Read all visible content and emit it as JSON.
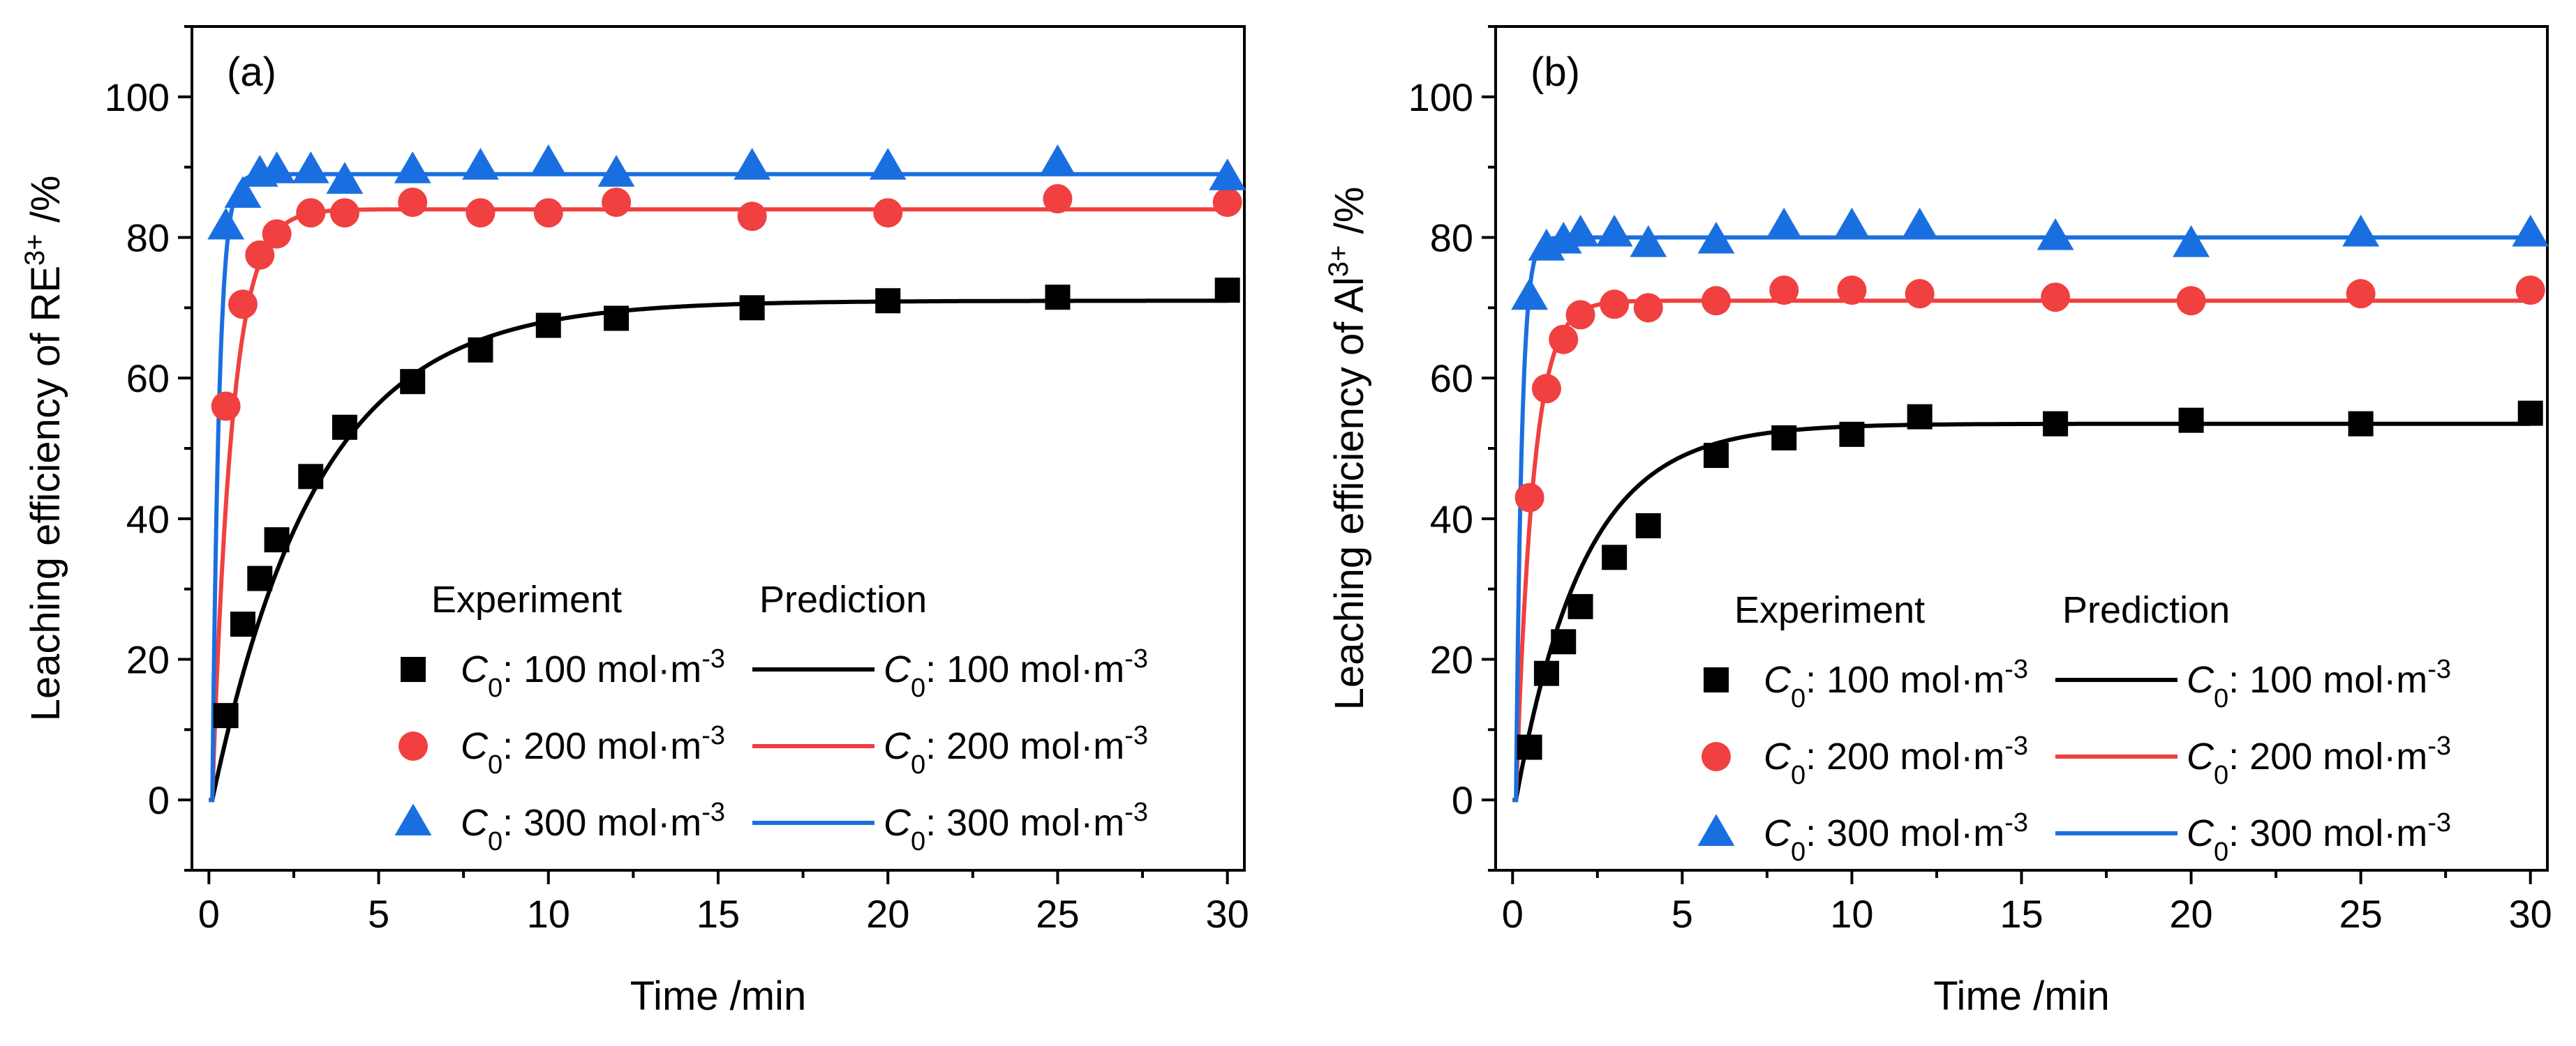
{
  "chart_data": [
    {
      "type": "line",
      "panel_label": "(a)",
      "xlabel": "Time /min",
      "ylabel": {
        "prefix": "Leaching efficiency of RE",
        "superscript": "3+",
        "suffix": " /%"
      },
      "xlim": [
        -0.5,
        30.5
      ],
      "ylim": [
        -10,
        110
      ],
      "xticks": [
        0,
        5,
        10,
        15,
        20,
        25,
        30
      ],
      "yticks": [
        0,
        20,
        40,
        60,
        80,
        100
      ],
      "legend": {
        "position": "bottom-right",
        "experiment_header": "Experiment",
        "prediction_header": "Prediction",
        "entries": [
          {
            "c": "C",
            "sub": "0",
            "text": ": 100 mol·m",
            "sup": "-3"
          },
          {
            "c": "C",
            "sub": "0",
            "text": ": 200 mol·m",
            "sup": "-3"
          },
          {
            "c": "C",
            "sub": "0",
            "text": ": 300 mol·m",
            "sup": "-3"
          }
        ]
      },
      "series": [
        {
          "name": "C0: 100 mol·m-3",
          "color": "#000000",
          "marker": "square",
          "experiment": {
            "x": [
              0.5,
              1,
              1.5,
              2,
              3,
              4,
              6,
              8,
              10,
              12,
              16,
              20,
              25,
              30
            ],
            "y": [
              12,
              25,
              31.5,
              37,
              46,
              53,
              59.5,
              64,
              67.5,
              68.5,
              70,
              71,
              71.5,
              72.5
            ]
          },
          "prediction": {
            "plateau": 71,
            "tau": 3.1,
            "t0": 0.1
          }
        },
        {
          "name": "C0: 200 mol·m-3",
          "color": "#f04040",
          "marker": "circle",
          "experiment": {
            "x": [
              0.5,
              1,
              1.5,
              2,
              3,
              4,
              6,
              8,
              10,
              12,
              16,
              20,
              25,
              30
            ],
            "y": [
              56,
              70.5,
              77.5,
              80.5,
              83.5,
              83.5,
              85,
              83.5,
              83.5,
              85,
              83,
              83.5,
              85.5,
              85
            ]
          },
          "prediction": {
            "plateau": 84,
            "tau": 0.58,
            "t0": 0.1
          }
        },
        {
          "name": "C0: 300 mol·m-3",
          "color": "#1a6fe0",
          "marker": "triangle",
          "experiment": {
            "x": [
              0.5,
              1,
              1.5,
              2,
              3,
              4,
              6,
              8,
              10,
              12,
              16,
              20,
              25,
              30
            ],
            "y": [
              81.5,
              86,
              89,
              89.5,
              89.5,
              88,
              89.5,
              90,
              90.5,
              89,
              90,
              90,
              90.5,
              88.5
            ]
          },
          "prediction": {
            "plateau": 89,
            "tau": 0.2,
            "t0": 0.1
          }
        }
      ]
    },
    {
      "type": "line",
      "panel_label": "(b)",
      "xlabel": "Time /min",
      "ylabel": {
        "prefix": "Leaching efficiency of Al",
        "superscript": "3+",
        "suffix": " /%"
      },
      "xlim": [
        -0.5,
        30.5
      ],
      "ylim": [
        -10,
        110
      ],
      "xticks": [
        0,
        5,
        10,
        15,
        20,
        25,
        30
      ],
      "yticks": [
        0,
        20,
        40,
        60,
        80,
        100
      ],
      "legend": {
        "position": "bottom-right",
        "experiment_header": "Experiment",
        "prediction_header": "Prediction",
        "entries": [
          {
            "c": "C",
            "sub": "0",
            "text": ": 100 mol·m",
            "sup": "-3"
          },
          {
            "c": "C",
            "sub": "0",
            "text": ": 200 mol·m",
            "sup": "-3"
          },
          {
            "c": "C",
            "sub": "0",
            "text": ": 300 mol·m",
            "sup": "-3"
          }
        ]
      },
      "series": [
        {
          "name": "C0: 100 mol·m-3",
          "color": "#000000",
          "marker": "square",
          "experiment": {
            "x": [
              0.5,
              1,
              1.5,
              2,
              3,
              4,
              6,
              8,
              10,
              12,
              16,
              20,
              25,
              30
            ],
            "y": [
              7.5,
              18,
              22.5,
              27.5,
              34.5,
              39,
              49,
              51.5,
              52,
              54.5,
              53.5,
              54,
              53.5,
              55
            ]
          },
          "prediction": {
            "plateau": 53.5,
            "tau": 2.0,
            "t0": 0.1
          }
        },
        {
          "name": "C0: 200 mol·m-3",
          "color": "#f04040",
          "marker": "circle",
          "experiment": {
            "x": [
              0.5,
              1,
              1.5,
              2,
              3,
              4,
              6,
              8,
              10,
              12,
              16,
              20,
              25,
              30
            ],
            "y": [
              43,
              58.5,
              65.5,
              69,
              70.5,
              70,
              71,
              72.5,
              72.5,
              72,
              71.5,
              71,
              72,
              72.5
            ]
          },
          "prediction": {
            "plateau": 71,
            "tau": 0.5,
            "t0": 0.1
          }
        },
        {
          "name": "C0: 300 mol·m-3",
          "color": "#1a6fe0",
          "marker": "triangle",
          "experiment": {
            "x": [
              0.5,
              1,
              1.5,
              2,
              3,
              4,
              6,
              8,
              10,
              12,
              16,
              20,
              25,
              30
            ],
            "y": [
              71.5,
              78.5,
              79.5,
              80.5,
              80.5,
              79,
              79.5,
              81.5,
              81.5,
              81.5,
              80,
              79,
              80.5,
              80.5
            ]
          },
          "prediction": {
            "plateau": 80,
            "tau": 0.17,
            "t0": 0.1
          }
        }
      ]
    }
  ]
}
